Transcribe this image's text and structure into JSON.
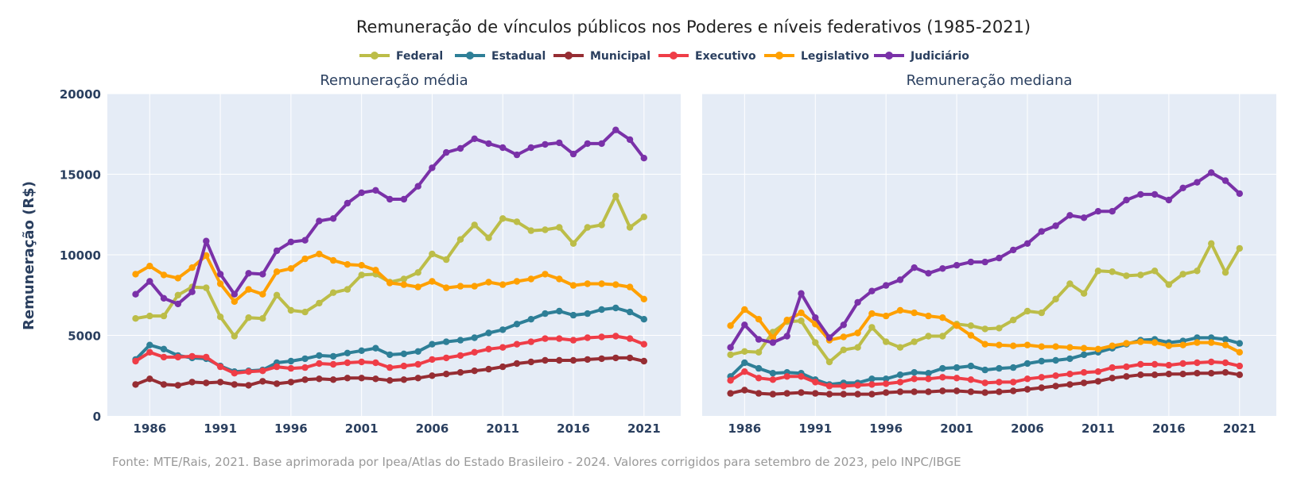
{
  "title": "Remuneração de vínculos públicos nos Poderes e níveis federativos (1985-2021)",
  "footer": "Fonte: MTE/Rais, 2021. Base aprimorada por Ipea/Atlas do Estado Brasileiro - 2024. Valores corrigidos para setembro de 2023, pelo INPC/IBGE",
  "ylabel": "Remuneração (R$)",
  "legend": [
    {
      "name": "Federal",
      "color": "#bcbd48"
    },
    {
      "name": "Estadual",
      "color": "#2e7f97"
    },
    {
      "name": "Municipal",
      "color": "#962d33"
    },
    {
      "name": "Executivo",
      "color": "#ef3d47"
    },
    {
      "name": "Legislativo",
      "color": "#ffa000"
    },
    {
      "name": "Judiciário",
      "color": "#7a31a8"
    }
  ],
  "chart_data": [
    {
      "type": "line",
      "title": "Remuneração média",
      "ylabel": "Remuneração (R$)",
      "xlabel": "",
      "ylim": [
        0,
        20000
      ],
      "xlim": [
        1983,
        2023.6
      ],
      "yticks": [
        0,
        5000,
        10000,
        15000,
        20000
      ],
      "xticks": [
        1986,
        1991,
        1996,
        2001,
        2006,
        2011,
        2016,
        2021
      ],
      "grid": true,
      "legend_position": "top-center",
      "x": [
        1985,
        1986,
        1987,
        1988,
        1989,
        1990,
        1991,
        1992,
        1993,
        1994,
        1995,
        1996,
        1997,
        1998,
        1999,
        2000,
        2001,
        2002,
        2003,
        2004,
        2005,
        2006,
        2007,
        2008,
        2009,
        2010,
        2011,
        2012,
        2013,
        2014,
        2015,
        2016,
        2017,
        2018,
        2019,
        2020,
        2021
      ],
      "series": [
        {
          "name": "Federal",
          "values": [
            6050,
            6200,
            6200,
            7500,
            8000,
            7950,
            6150,
            4950,
            6100,
            6050,
            7500,
            6550,
            6450,
            7000,
            7650,
            7850,
            8750,
            8800,
            8300,
            8500,
            8900,
            10050,
            9700,
            10950,
            11850,
            11050,
            12250,
            12050,
            11500,
            11550,
            11700,
            10700,
            11700,
            11850,
            13650,
            11700,
            12350
          ]
        },
        {
          "name": "Estadual",
          "values": [
            3500,
            4400,
            4150,
            3750,
            3600,
            3550,
            3100,
            2750,
            2800,
            2850,
            3300,
            3400,
            3550,
            3750,
            3700,
            3900,
            4050,
            4200,
            3800,
            3850,
            4000,
            4450,
            4600,
            4700,
            4850,
            5150,
            5350,
            5700,
            6000,
            6350,
            6500,
            6250,
            6350,
            6600,
            6700,
            6450,
            6000
          ]
        },
        {
          "name": "Municipal",
          "values": [
            1950,
            2300,
            1950,
            1900,
            2100,
            2050,
            2100,
            1950,
            1900,
            2150,
            2000,
            2100,
            2250,
            2300,
            2250,
            2350,
            2350,
            2300,
            2200,
            2250,
            2350,
            2500,
            2600,
            2700,
            2800,
            2900,
            3050,
            3250,
            3350,
            3450,
            3450,
            3450,
            3500,
            3550,
            3600,
            3600,
            3400
          ]
        },
        {
          "name": "Executivo",
          "values": [
            3400,
            3950,
            3650,
            3650,
            3700,
            3650,
            3050,
            2650,
            2750,
            2800,
            3050,
            2950,
            3000,
            3250,
            3200,
            3300,
            3350,
            3300,
            3000,
            3100,
            3200,
            3500,
            3600,
            3750,
            3950,
            4150,
            4250,
            4450,
            4600,
            4800,
            4800,
            4700,
            4850,
            4900,
            4950,
            4800,
            4450
          ]
        },
        {
          "name": "Legislativo",
          "values": [
            8800,
            9300,
            8750,
            8550,
            9200,
            9950,
            8200,
            7100,
            7850,
            7550,
            8950,
            9150,
            9750,
            10050,
            9650,
            9400,
            9350,
            9050,
            8250,
            8150,
            8000,
            8350,
            7950,
            8050,
            8050,
            8300,
            8150,
            8350,
            8500,
            8800,
            8500,
            8100,
            8200,
            8200,
            8150,
            8000,
            7250
          ]
        },
        {
          "name": "Judiciário",
          "values": [
            7550,
            8350,
            7300,
            6950,
            7700,
            10850,
            8800,
            7550,
            8850,
            8800,
            10250,
            10800,
            10900,
            12100,
            12250,
            13200,
            13850,
            14000,
            13450,
            13450,
            14250,
            15400,
            16350,
            16600,
            17200,
            16900,
            16650,
            16200,
            16650,
            16850,
            16950,
            16250,
            16900,
            16900,
            17750,
            17150,
            16000
          ]
        }
      ]
    },
    {
      "type": "line",
      "title": "Remuneração mediana",
      "ylabel": "",
      "xlabel": "",
      "ylim": [
        0,
        20000
      ],
      "xlim": [
        1983,
        2023.6
      ],
      "yticks": [
        0,
        5000,
        10000,
        15000,
        20000
      ],
      "xticks": [
        1986,
        1991,
        1996,
        2001,
        2006,
        2011,
        2016,
        2021
      ],
      "grid": true,
      "x": [
        1985,
        1986,
        1987,
        1988,
        1989,
        1990,
        1991,
        1992,
        1993,
        1994,
        1995,
        1996,
        1997,
        1998,
        1999,
        2000,
        2001,
        2002,
        2003,
        2004,
        2005,
        2006,
        2007,
        2008,
        2009,
        2010,
        2011,
        2012,
        2013,
        2014,
        2015,
        2016,
        2017,
        2018,
        2019,
        2020,
        2021
      ],
      "series": [
        {
          "name": "Federal",
          "values": [
            3800,
            4000,
            3950,
            5200,
            5850,
            5900,
            4550,
            3350,
            4100,
            4250,
            5500,
            4600,
            4250,
            4600,
            4950,
            4950,
            5700,
            5600,
            5400,
            5450,
            5950,
            6500,
            6400,
            7250,
            8200,
            7600,
            9000,
            8950,
            8700,
            8750,
            9000,
            8150,
            8800,
            9000,
            10700,
            8900,
            10400
          ]
        },
        {
          "name": "Estadual",
          "values": [
            2450,
            3300,
            2950,
            2650,
            2700,
            2650,
            2250,
            1950,
            2050,
            2050,
            2300,
            2300,
            2550,
            2700,
            2650,
            2950,
            3000,
            3100,
            2850,
            2950,
            3000,
            3250,
            3400,
            3450,
            3550,
            3800,
            3950,
            4200,
            4450,
            4700,
            4750,
            4550,
            4650,
            4850,
            4850,
            4750,
            4500
          ]
        },
        {
          "name": "Municipal",
          "values": [
            1400,
            1600,
            1400,
            1350,
            1400,
            1450,
            1400,
            1350,
            1350,
            1350,
            1350,
            1450,
            1500,
            1500,
            1500,
            1550,
            1550,
            1500,
            1450,
            1500,
            1550,
            1650,
            1750,
            1850,
            1950,
            2050,
            2150,
            2350,
            2450,
            2550,
            2550,
            2600,
            2600,
            2650,
            2650,
            2700,
            2550
          ]
        },
        {
          "name": "Executivo",
          "values": [
            2200,
            2750,
            2350,
            2250,
            2450,
            2450,
            2100,
            1850,
            1850,
            1900,
            1950,
            2000,
            2100,
            2300,
            2300,
            2400,
            2350,
            2250,
            2050,
            2100,
            2100,
            2300,
            2400,
            2500,
            2600,
            2700,
            2750,
            3000,
            3050,
            3200,
            3200,
            3150,
            3250,
            3300,
            3350,
            3300,
            3100
          ]
        },
        {
          "name": "Legislativo",
          "values": [
            5600,
            6600,
            6000,
            4850,
            5950,
            6400,
            5700,
            4700,
            4900,
            5150,
            6350,
            6200,
            6550,
            6400,
            6200,
            6100,
            5600,
            5000,
            4450,
            4400,
            4350,
            4400,
            4300,
            4300,
            4250,
            4200,
            4150,
            4350,
            4500,
            4600,
            4550,
            4350,
            4400,
            4550,
            4550,
            4400,
            3950
          ]
        },
        {
          "name": "Judiciário",
          "values": [
            4250,
            5650,
            4750,
            4550,
            4950,
            7600,
            6100,
            4850,
            5650,
            7050,
            7750,
            8100,
            8450,
            9200,
            8850,
            9150,
            9350,
            9550,
            9550,
            9800,
            10300,
            10700,
            11450,
            11800,
            12450,
            12300,
            12700,
            12700,
            13400,
            13750,
            13750,
            13400,
            14150,
            14500,
            15100,
            14600,
            13800
          ]
        }
      ]
    }
  ]
}
